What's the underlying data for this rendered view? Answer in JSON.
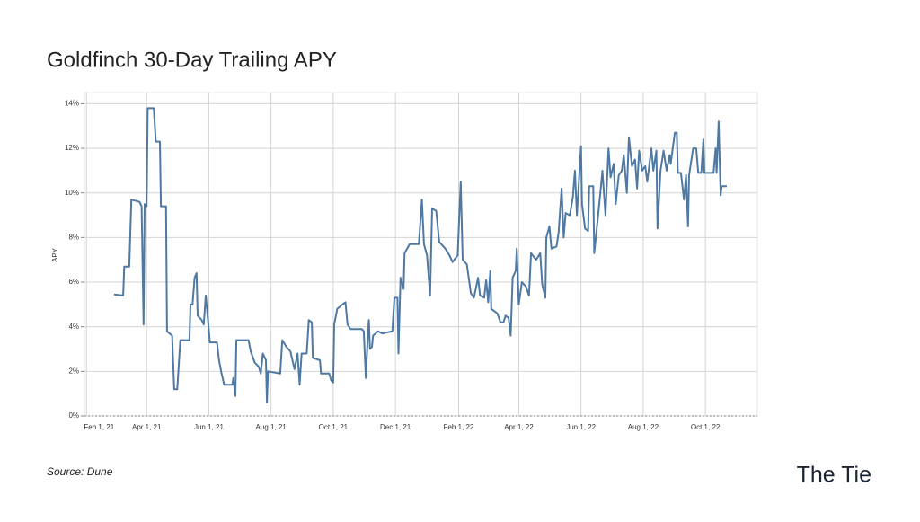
{
  "chart_data": {
    "type": "line",
    "title": "Goldfinch 30-Day Trailing APY",
    "ylabel": "APY",
    "source": "Source: Dune",
    "logo": "The Tie",
    "grid": true,
    "xlim": [
      "2021-01-30",
      "2022-11-21"
    ],
    "xticks": [
      {
        "value": "2021-02-01",
        "label": "Feb 1, 21"
      },
      {
        "value": "2021-04-01",
        "label": "Apr 1, 21"
      },
      {
        "value": "2021-06-01",
        "label": "Jun 1, 21"
      },
      {
        "value": "2021-08-01",
        "label": "Aug 1, 21"
      },
      {
        "value": "2021-10-01",
        "label": "Oct 1, 21"
      },
      {
        "value": "2021-12-01",
        "label": "Dec 1, 21"
      },
      {
        "value": "2022-02-01",
        "label": "Feb 1, 22"
      },
      {
        "value": "2022-04-01",
        "label": "Apr 1, 22"
      },
      {
        "value": "2022-06-01",
        "label": "Jun 1, 22"
      },
      {
        "value": "2022-08-01",
        "label": "Aug 1, 22"
      },
      {
        "value": "2022-10-01",
        "label": "Oct 1, 22"
      }
    ],
    "ylim": [
      0,
      14.5
    ],
    "yticks": [
      {
        "value": 0,
        "label": "0%"
      },
      {
        "value": 2,
        "label": "2%"
      },
      {
        "value": 4,
        "label": "4%"
      },
      {
        "value": 6,
        "label": "6%"
      },
      {
        "value": 8,
        "label": "8%"
      },
      {
        "value": 10,
        "label": "10%"
      },
      {
        "value": 12,
        "label": "12%"
      },
      {
        "value": 14,
        "label": "14%"
      }
    ],
    "x": [
      "2021-02-28",
      "2021-03-09",
      "2021-03-10",
      "2021-03-15",
      "2021-03-17",
      "2021-03-25",
      "2021-03-27",
      "2021-03-29",
      "2021-03-30",
      "2021-04-01",
      "2021-04-02",
      "2021-04-08",
      "2021-04-10",
      "2021-04-14",
      "2021-04-15",
      "2021-04-20",
      "2021-04-21",
      "2021-04-26",
      "2021-04-28",
      "2021-05-01",
      "2021-05-04",
      "2021-05-13",
      "2021-05-14",
      "2021-05-16",
      "2021-05-18",
      "2021-05-20",
      "2021-05-21",
      "2021-05-25",
      "2021-05-27",
      "2021-05-29",
      "2021-05-31",
      "2021-06-02",
      "2021-06-09",
      "2021-06-11",
      "2021-06-13",
      "2021-06-16",
      "2021-06-24",
      "2021-06-25",
      "2021-06-27",
      "2021-06-28",
      "2021-07-10",
      "2021-07-12",
      "2021-07-16",
      "2021-07-20",
      "2021-07-22",
      "2021-07-24",
      "2021-07-27",
      "2021-07-28",
      "2021-07-29",
      "2021-08-10",
      "2021-08-12",
      "2021-08-16",
      "2021-08-20",
      "2021-08-24",
      "2021-08-27",
      "2021-08-29",
      "2021-08-31",
      "2021-09-05",
      "2021-09-07",
      "2021-09-10",
      "2021-09-11",
      "2021-09-18",
      "2021-09-19",
      "2021-09-27",
      "2021-09-29",
      "2021-10-01",
      "2021-10-02",
      "2021-10-05",
      "2021-10-10",
      "2021-10-13",
      "2021-10-15",
      "2021-10-18",
      "2021-10-29",
      "2021-10-31",
      "2021-11-02",
      "2021-11-04",
      "2021-11-05",
      "2021-11-06",
      "2021-11-08",
      "2021-11-09",
      "2021-11-14",
      "2021-11-18",
      "2021-11-28",
      "2021-11-30",
      "2021-12-03",
      "2021-12-04",
      "2021-12-06",
      "2021-12-09",
      "2021-12-10",
      "2021-12-15",
      "2021-12-24",
      "2021-12-27",
      "2021-12-29",
      "2022-01-01",
      "2022-01-04",
      "2022-01-06",
      "2022-01-10",
      "2022-01-13",
      "2022-01-19",
      "2022-01-23",
      "2022-01-26",
      "2022-01-31",
      "2022-02-03",
      "2022-02-05",
      "2022-02-09",
      "2022-02-13",
      "2022-02-16",
      "2022-02-20",
      "2022-02-22",
      "2022-02-26",
      "2022-02-28",
      "2022-03-02",
      "2022-03-04",
      "2022-03-05",
      "2022-03-11",
      "2022-03-14",
      "2022-03-17",
      "2022-03-19",
      "2022-03-22",
      "2022-03-24",
      "2022-03-26",
      "2022-03-29",
      "2022-03-30",
      "2022-04-01",
      "2022-04-04",
      "2022-04-08",
      "2022-04-11",
      "2022-04-13",
      "2022-04-18",
      "2022-04-22",
      "2022-04-24",
      "2022-04-27",
      "2022-04-28",
      "2022-05-01",
      "2022-05-03",
      "2022-05-08",
      "2022-05-10",
      "2022-05-13",
      "2022-05-15",
      "2022-05-17",
      "2022-05-21",
      "2022-05-24",
      "2022-05-26",
      "2022-05-28",
      "2022-06-01",
      "2022-06-02",
      "2022-06-05",
      "2022-06-08",
      "2022-06-09",
      "2022-06-13",
      "2022-06-14",
      "2022-06-18",
      "2022-06-21",
      "2022-06-22",
      "2022-06-25",
      "2022-06-28",
      "2022-06-30",
      "2022-07-03",
      "2022-07-05",
      "2022-07-08",
      "2022-07-11",
      "2022-07-13",
      "2022-07-16",
      "2022-07-18",
      "2022-07-21",
      "2022-07-24",
      "2022-07-26",
      "2022-07-28",
      "2022-07-31",
      "2022-08-03",
      "2022-08-05",
      "2022-08-09",
      "2022-08-11",
      "2022-08-14",
      "2022-08-15",
      "2022-08-18",
      "2022-08-21",
      "2022-08-24",
      "2022-08-27",
      "2022-08-28",
      "2022-09-01",
      "2022-09-03",
      "2022-09-04",
      "2022-09-07",
      "2022-09-10",
      "2022-09-12",
      "2022-09-14",
      "2022-09-15",
      "2022-09-19",
      "2022-09-22",
      "2022-09-24",
      "2022-09-27",
      "2022-09-29",
      "2022-09-30",
      "2022-10-09",
      "2022-10-11",
      "2022-10-12",
      "2022-10-14",
      "2022-10-16",
      "2022-10-17",
      "2022-10-22"
    ],
    "series": [
      {
        "name": "APY",
        "color": "#4f79a3",
        "values": [
          5.45,
          5.4,
          6.7,
          6.7,
          9.7,
          9.6,
          9.4,
          4.1,
          9.5,
          9.4,
          13.8,
          13.8,
          12.3,
          12.3,
          9.4,
          9.4,
          3.8,
          3.6,
          1.2,
          1.2,
          3.4,
          3.4,
          5.0,
          5.0,
          6.2,
          6.4,
          4.5,
          4.3,
          4.1,
          5.4,
          4.4,
          3.3,
          3.3,
          2.5,
          2.0,
          1.4,
          1.4,
          1.7,
          0.9,
          3.4,
          3.4,
          2.9,
          2.4,
          2.2,
          1.9,
          2.8,
          2.5,
          0.6,
          2.0,
          1.9,
          3.4,
          3.1,
          2.9,
          2.1,
          2.8,
          1.4,
          2.8,
          2.8,
          4.3,
          4.2,
          2.6,
          2.5,
          1.9,
          1.9,
          1.6,
          1.5,
          4.1,
          4.8,
          5.0,
          5.1,
          4.1,
          3.9,
          3.9,
          3.8,
          1.7,
          3.7,
          4.3,
          3.0,
          3.1,
          3.6,
          3.8,
          3.7,
          3.8,
          5.3,
          5.3,
          2.8,
          6.2,
          5.7,
          7.3,
          7.7,
          7.7,
          9.7,
          7.7,
          7.2,
          5.4,
          9.3,
          9.2,
          7.8,
          7.5,
          7.2,
          6.9,
          7.2,
          10.5,
          7.0,
          6.8,
          5.5,
          5.3,
          6.2,
          5.4,
          5.3,
          6.1,
          5.1,
          6.5,
          4.8,
          4.6,
          4.2,
          4.2,
          4.5,
          4.4,
          3.6,
          6.2,
          6.5,
          7.5,
          5.0,
          6.0,
          5.8,
          5.4,
          7.3,
          7.0,
          7.3,
          5.9,
          5.3,
          8.0,
          8.5,
          7.5,
          7.6,
          8.2,
          10.2,
          8.0,
          9.1,
          9.0,
          9.8,
          11.0,
          9.0,
          12.1,
          9.5,
          8.4,
          8.3,
          10.3,
          10.3,
          7.3,
          9.1,
          10.5,
          11.0,
          9.0,
          12.0,
          10.7,
          11.3,
          9.5,
          10.8,
          11.0,
          11.7,
          10.0,
          12.5,
          11.2,
          11.5,
          10.2,
          11.9,
          11.0,
          11.2,
          10.5,
          12.0,
          11.0,
          11.9,
          8.4,
          11.0,
          11.9,
          11.0,
          11.7,
          11.3,
          12.7,
          12.7,
          10.9,
          10.9,
          9.7,
          10.8,
          8.5,
          10.8,
          12.0,
          12.0,
          10.9,
          10.9,
          12.4,
          10.9,
          10.9,
          12.0,
          10.9,
          13.2,
          9.9,
          10.3,
          10.3
        ]
      }
    ]
  }
}
